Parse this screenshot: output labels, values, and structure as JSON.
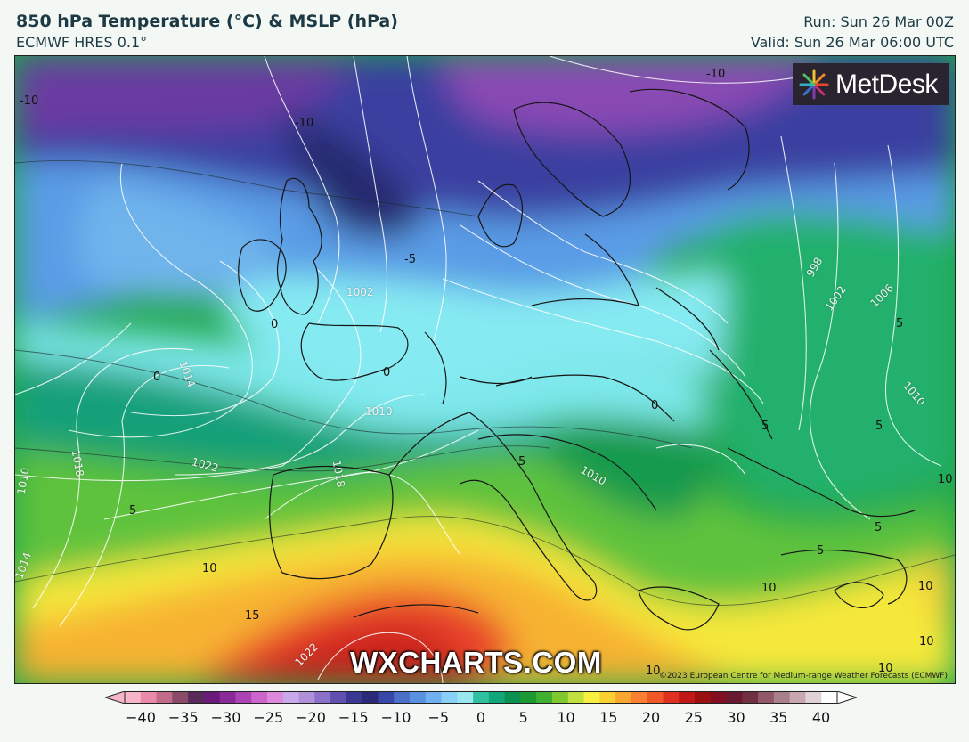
{
  "header": {
    "title": "850 hPa Temperature (°C) & MSLP (hPa)",
    "model": "ECMWF HRES 0.1°",
    "run": "Run: Sun 26 Mar 00Z",
    "valid": "Valid: Sun 26 Mar 06:00 UTC"
  },
  "map": {
    "brand_logo_text": "MetDesk",
    "watermark": "WXCHARTS.COM",
    "copyright": "©2023 European Centre for Medium-range Weather Forecasts (ECMWF)",
    "isobar_labels": [
      "1002",
      "998",
      "1002",
      "1006",
      "1010",
      "1010",
      "1014",
      "1018",
      "1022",
      "1018",
      "1010",
      "1014",
      "1022",
      "1010"
    ],
    "temperature_labels": [
      "-10",
      "-10",
      "-10",
      "-5",
      "0",
      "0",
      "0",
      "0",
      "5",
      "5",
      "5",
      "5",
      "5",
      "5",
      "5",
      "10",
      "10",
      "10",
      "10",
      "10",
      "15",
      "10",
      "10"
    ]
  },
  "colorbar": {
    "ticks": [
      "−40",
      "−35",
      "−30",
      "−25",
      "−20",
      "−15",
      "−10",
      "−5",
      "0",
      "5",
      "10",
      "15",
      "20",
      "25",
      "30",
      "35",
      "40"
    ],
    "colors": [
      "#f6b6c8",
      "#e88aa8",
      "#c26a8a",
      "#8a4a6a",
      "#5a2a5a",
      "#6a1a7a",
      "#8a2a9a",
      "#aa44b4",
      "#cc66cc",
      "#dd88dd",
      "#c8a8e8",
      "#b090d8",
      "#8a70c8",
      "#6050b0",
      "#3a3890",
      "#2a2a78",
      "#3848a8",
      "#4a70c8",
      "#5a90e0",
      "#70b0f0",
      "#88d0f8",
      "#98e8f0",
      "#30c0a0",
      "#10a878",
      "#0a9050",
      "#1a9a30",
      "#40b030",
      "#80c830",
      "#c0e040",
      "#f8f040",
      "#f8d030",
      "#f8a830",
      "#f88030",
      "#f05828",
      "#e03020",
      "#c01818",
      "#9a1010",
      "#801020",
      "#6a1a30",
      "#703040",
      "#905868",
      "#a88088",
      "#c8a8b0",
      "#e0d0d8",
      "#ffffff"
    ]
  }
}
